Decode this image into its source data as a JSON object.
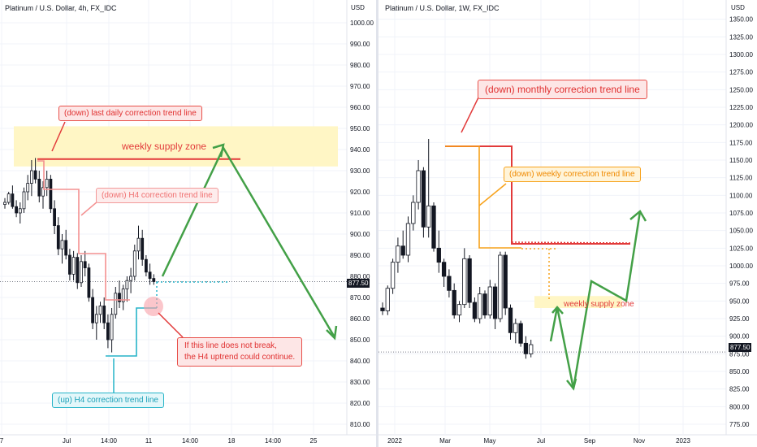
{
  "chart_data": [
    {
      "type": "candlestick",
      "symbol": "Platinum / U.S. Dollar, 4h, FX_IDC",
      "currency": "USD",
      "ylim": [
        805,
        1010
      ],
      "yticks": [
        810,
        820,
        830,
        840,
        850,
        860,
        870,
        880,
        890,
        900,
        910,
        920,
        930,
        940,
        950,
        960,
        970,
        980,
        990,
        1000
      ],
      "ytick_labels": [
        "810.00",
        "820.00",
        "830.00",
        "840.00",
        "850.00",
        "860.00",
        "870.00",
        "880.00",
        "890.00",
        "900.00",
        "910.00",
        "920.00",
        "930.00",
        "940.00",
        "950.00",
        "960.00",
        "970.00",
        "980.00",
        "990.00",
        "1000.00"
      ],
      "xtick_labels": [
        "7",
        "Jul",
        "14:00",
        "11",
        "14:00",
        "18",
        "14:00",
        "25"
      ],
      "last_price": 877.5,
      "last_price_label": "877.50",
      "candles": [
        [
          914,
          917,
          912,
          915
        ],
        [
          915,
          920,
          914,
          919
        ],
        [
          919,
          923,
          912,
          913
        ],
        [
          913,
          916,
          908,
          910
        ],
        [
          910,
          915,
          905,
          912
        ],
        [
          912,
          922,
          910,
          920
        ],
        [
          920,
          928,
          916,
          924
        ],
        [
          924,
          935,
          918,
          930
        ],
        [
          930,
          936,
          924,
          926
        ],
        [
          926,
          930,
          915,
          918
        ],
        [
          918,
          925,
          912,
          922
        ],
        [
          922,
          930,
          918,
          926
        ],
        [
          926,
          928,
          910,
          912
        ],
        [
          912,
          916,
          900,
          904
        ],
        [
          904,
          908,
          890,
          893
        ],
        [
          893,
          900,
          886,
          897
        ],
        [
          897,
          902,
          888,
          890
        ],
        [
          890,
          893,
          878,
          881
        ],
        [
          881,
          892,
          878,
          889
        ],
        [
          889,
          891,
          874,
          877
        ],
        [
          877,
          890,
          875,
          887
        ],
        [
          887,
          892,
          880,
          884
        ],
        [
          884,
          886,
          868,
          870
        ],
        [
          870,
          874,
          855,
          858
        ],
        [
          858,
          866,
          850,
          862
        ],
        [
          862,
          868,
          858,
          866
        ],
        [
          866,
          870,
          855,
          858
        ],
        [
          858,
          862,
          846,
          850
        ],
        [
          850,
          865,
          844,
          862
        ],
        [
          862,
          875,
          860,
          872
        ],
        [
          872,
          878,
          865,
          868
        ],
        [
          868,
          876,
          864,
          874
        ],
        [
          874,
          880,
          868,
          878
        ],
        [
          878,
          884,
          872,
          880
        ],
        [
          880,
          895,
          878,
          892
        ],
        [
          892,
          904,
          888,
          898
        ],
        [
          898,
          902,
          885,
          888
        ],
        [
          888,
          890,
          880,
          882
        ],
        [
          882,
          886,
          876,
          879
        ],
        [
          879,
          881,
          876,
          877.5
        ]
      ],
      "supply_zone": [
        932,
        951
      ],
      "annotations": {
        "daily_line": "(down) last daily correction trend line",
        "zone_label": "weekly supply zone",
        "h4_down": "(down) H4 correction trend line",
        "h4_up": "(up) H4 correction trend line",
        "note_line1": "If this line does not break,",
        "note_line2": "the H4 uptrend could continue."
      }
    },
    {
      "type": "candlestick",
      "symbol": "Platinum / U.S. Dollar, 1W, FX_IDC",
      "currency": "USD",
      "ylim": [
        760,
        1375
      ],
      "yticks": [
        775,
        800,
        825,
        850,
        875,
        900,
        925,
        950,
        975,
        1000,
        1025,
        1050,
        1075,
        1100,
        1125,
        1150,
        1175,
        1200,
        1225,
        1250,
        1275,
        1300,
        1325,
        1350
      ],
      "ytick_labels": [
        "775.00",
        "800.00",
        "825.00",
        "850.00",
        "875.00",
        "900.00",
        "925.00",
        "950.00",
        "975.00",
        "1000.00",
        "1025.00",
        "1050.00",
        "1075.00",
        "1100.00",
        "1125.00",
        "1150.00",
        "1175.00",
        "1200.00",
        "1225.00",
        "1250.00",
        "1275.00",
        "1300.00",
        "1325.00",
        "1350.00"
      ],
      "xtick_labels": [
        "2022",
        "Mar",
        "May",
        "Jul",
        "Sep",
        "Nov",
        "2023"
      ],
      "last_price": 877.5,
      "last_price_label": "877.50",
      "candles": [
        [
          940,
          948,
          930,
          936
        ],
        [
          936,
          972,
          930,
          968
        ],
        [
          968,
          1010,
          960,
          1005
        ],
        [
          1005,
          1040,
          990,
          1028
        ],
        [
          1028,
          1050,
          1010,
          1015
        ],
        [
          1015,
          1070,
          1005,
          1060
        ],
        [
          1060,
          1100,
          1050,
          1090
        ],
        [
          1090,
          1150,
          1080,
          1135
        ],
        [
          1135,
          1140,
          1040,
          1055
        ],
        [
          1055,
          1180,
          1040,
          1085
        ],
        [
          1085,
          1090,
          1020,
          1025
        ],
        [
          1025,
          1050,
          990,
          1005
        ],
        [
          1005,
          1010,
          970,
          985
        ],
        [
          985,
          995,
          955,
          965
        ],
        [
          965,
          975,
          925,
          930
        ],
        [
          930,
          950,
          920,
          945
        ],
        [
          945,
          1025,
          940,
          1010
        ],
        [
          1010,
          1015,
          940,
          948
        ],
        [
          948,
          955,
          920,
          925
        ],
        [
          925,
          970,
          918,
          960
        ],
        [
          960,
          965,
          925,
          930
        ],
        [
          930,
          980,
          925,
          970
        ],
        [
          970,
          975,
          910,
          925
        ],
        [
          925,
          1020,
          920,
          1015
        ],
        [
          1015,
          1020,
          930,
          940
        ],
        [
          940,
          945,
          895,
          905
        ],
        [
          905,
          925,
          890,
          918
        ],
        [
          918,
          922,
          885,
          890
        ],
        [
          890,
          900,
          868,
          875
        ],
        [
          875,
          895,
          870,
          888
        ]
      ],
      "supply_zone": [
        940,
        957
      ],
      "annotations": {
        "monthly_line": "(down) monthly correction trend line",
        "weekly_line": "(down) weekly correction trend line",
        "zone_label": "weekly supply zone"
      }
    }
  ]
}
